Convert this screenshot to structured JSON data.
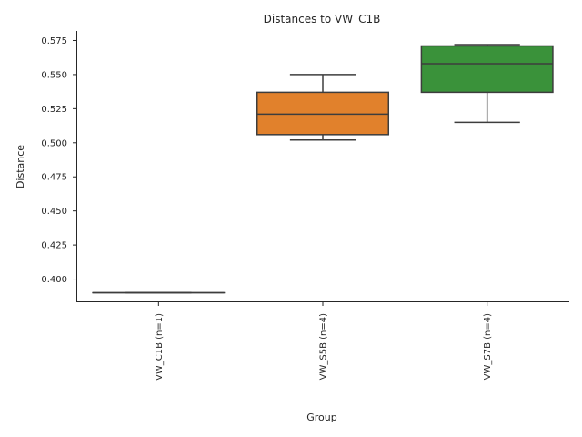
{
  "chart_data": {
    "type": "box",
    "title": "Distances to VW_C1B",
    "xlabel": "Group",
    "ylabel": "Distance",
    "ylim": [
      0.383,
      0.582
    ],
    "yticks": [
      "0.400",
      "0.425",
      "0.450",
      "0.475",
      "0.500",
      "0.525",
      "0.550",
      "0.575"
    ],
    "grid": false,
    "categories": [
      "VW_C1B (n=1)",
      "VW_S5B (n=4)",
      "VW_S7B (n=4)"
    ],
    "boxes": [
      {
        "name": "VW_C1B (n=1)",
        "color": "#3274a1",
        "whislo": 0.39,
        "q1": 0.39,
        "med": 0.39,
        "q3": 0.39,
        "whishi": 0.39
      },
      {
        "name": "VW_S5B (n=4)",
        "color": "#e1812c",
        "whislo": 0.502,
        "q1": 0.506,
        "med": 0.521,
        "q3": 0.537,
        "whishi": 0.55
      },
      {
        "name": "VW_S7B (n=4)",
        "color": "#3a923a",
        "whislo": 0.515,
        "q1": 0.537,
        "med": 0.558,
        "q3": 0.571,
        "whishi": 0.572
      }
    ]
  }
}
